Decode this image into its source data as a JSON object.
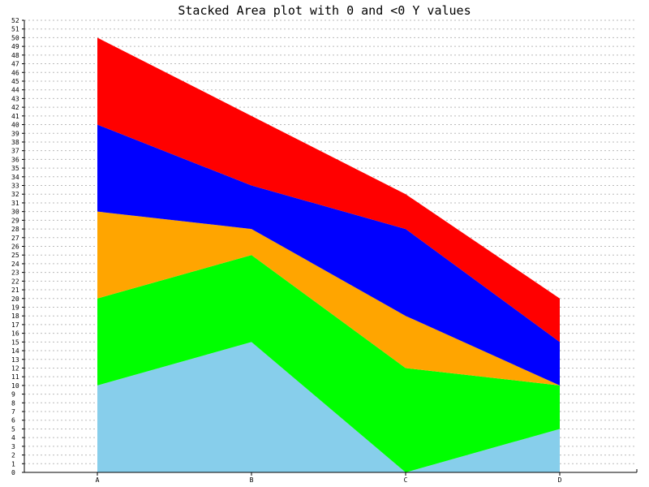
{
  "chart_data": {
    "type": "area",
    "stacked": true,
    "title": "Stacked Area plot with 0 and <0 Y values",
    "xlabel": "",
    "ylabel": "",
    "categories": [
      "A",
      "B",
      "C",
      "D"
    ],
    "ylim": [
      0,
      52
    ],
    "y_tick_step": 1,
    "grid": true,
    "legend": "none",
    "background_color": "#ffffff",
    "axis_color": "#000000",
    "grid_color": "#bbbbbb",
    "series": [
      {
        "values": [
          10,
          15,
          0,
          5
        ],
        "color": "#87ceeb"
      },
      {
        "values": [
          10,
          10,
          12,
          5
        ],
        "color": "#00ff00"
      },
      {
        "values": [
          10,
          3,
          6,
          0
        ],
        "color": "#ffa500"
      },
      {
        "values": [
          10,
          5,
          10,
          5
        ],
        "color": "#0000ff"
      },
      {
        "values": [
          10,
          8,
          4,
          5
        ],
        "color": "#ff0000"
      }
    ]
  }
}
